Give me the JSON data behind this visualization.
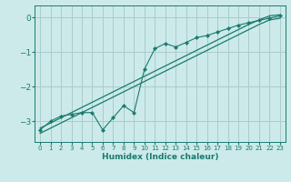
{
  "xlabel": "Humidex (Indice chaleur)",
  "bg_color": "#cceaea",
  "grid_color": "#aacccc",
  "line_color": "#1a7a6e",
  "xlim": [
    -0.5,
    23.5
  ],
  "ylim": [
    -3.6,
    0.35
  ],
  "yticks": [
    0,
    -1,
    -2,
    -3
  ],
  "xtick_labels": [
    "0",
    "1",
    "2",
    "3",
    "4",
    "5",
    "6",
    "7",
    "8",
    "9",
    "10",
    "11",
    "12",
    "13",
    "14",
    "15",
    "16",
    "17",
    "18",
    "19",
    "20",
    "21",
    "22",
    "23"
  ],
  "line1_x": [
    0,
    1,
    2,
    3,
    4,
    5,
    6,
    7,
    8,
    9,
    10,
    11,
    12,
    13,
    14,
    15,
    16,
    17,
    18,
    19,
    20,
    21,
    22,
    23
  ],
  "line1_y": [
    -3.2,
    -3.05,
    -2.9,
    -2.75,
    -2.6,
    -2.45,
    -2.3,
    -2.15,
    -2.0,
    -1.85,
    -1.7,
    -1.55,
    -1.4,
    -1.25,
    -1.1,
    -0.95,
    -0.8,
    -0.65,
    -0.5,
    -0.35,
    -0.2,
    -0.07,
    0.05,
    0.08
  ],
  "line2_x": [
    0,
    1,
    2,
    3,
    4,
    5,
    6,
    7,
    8,
    9,
    10,
    11,
    12,
    13,
    14,
    15,
    16,
    17,
    18,
    19,
    20,
    21,
    22,
    23
  ],
  "line2_y": [
    -3.35,
    -3.2,
    -3.05,
    -2.9,
    -2.75,
    -2.6,
    -2.45,
    -2.3,
    -2.15,
    -2.0,
    -1.85,
    -1.7,
    -1.55,
    -1.4,
    -1.25,
    -1.1,
    -0.95,
    -0.8,
    -0.65,
    -0.5,
    -0.35,
    -0.2,
    -0.07,
    -0.02
  ],
  "line3_x": [
    0,
    1,
    2,
    3,
    4,
    5,
    6,
    7,
    8,
    9,
    10,
    11,
    12,
    13,
    14,
    15,
    16,
    17,
    18,
    19,
    20,
    21,
    22,
    23
  ],
  "line3_y": [
    -3.25,
    -3.0,
    -2.85,
    -2.8,
    -2.75,
    -2.75,
    -3.25,
    -2.9,
    -2.55,
    -2.75,
    -1.5,
    -0.9,
    -0.75,
    -0.85,
    -0.72,
    -0.58,
    -0.52,
    -0.42,
    -0.32,
    -0.22,
    -0.15,
    -0.08,
    -0.02,
    0.05
  ]
}
